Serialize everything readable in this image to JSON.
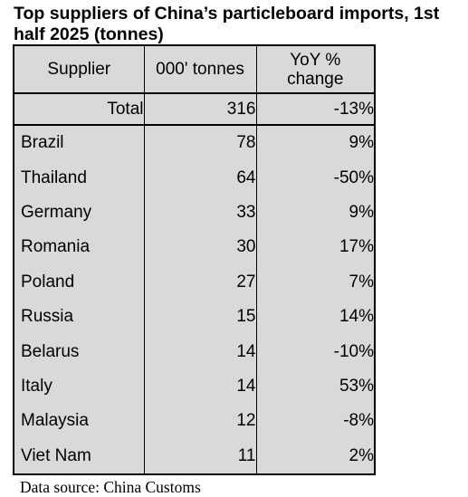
{
  "title": "Top suppliers of China’s particleboard imports, 1st half 2025 (tonnes)",
  "table": {
    "headers": [
      "Supplier",
      "000' tonnes",
      "YoY %\nchange"
    ],
    "total": {
      "label": "Total",
      "tonnes": "316",
      "change": "-13%"
    },
    "rows": [
      {
        "supplier": "Brazil",
        "tonnes": "78",
        "change": "9%"
      },
      {
        "supplier": "Thailand",
        "tonnes": "64",
        "change": "-50%"
      },
      {
        "supplier": "Germany",
        "tonnes": "33",
        "change": "9%"
      },
      {
        "supplier": "Romania",
        "tonnes": "30",
        "change": "17%"
      },
      {
        "supplier": "Poland",
        "tonnes": "27",
        "change": "7%"
      },
      {
        "supplier": "Russia",
        "tonnes": "15",
        "change": "14%"
      },
      {
        "supplier": "Belarus",
        "tonnes": "14",
        "change": "-10%"
      },
      {
        "supplier": "Italy",
        "tonnes": "14",
        "change": "53%"
      },
      {
        "supplier": "Malaysia",
        "tonnes": "12",
        "change": "-8%"
      },
      {
        "supplier": "Viet Nam",
        "tonnes": "11",
        "change": "2%"
      }
    ]
  },
  "source": "Data source: China Customs",
  "colors": {
    "cell_background": "#d9d9d9",
    "border": "#000000"
  }
}
